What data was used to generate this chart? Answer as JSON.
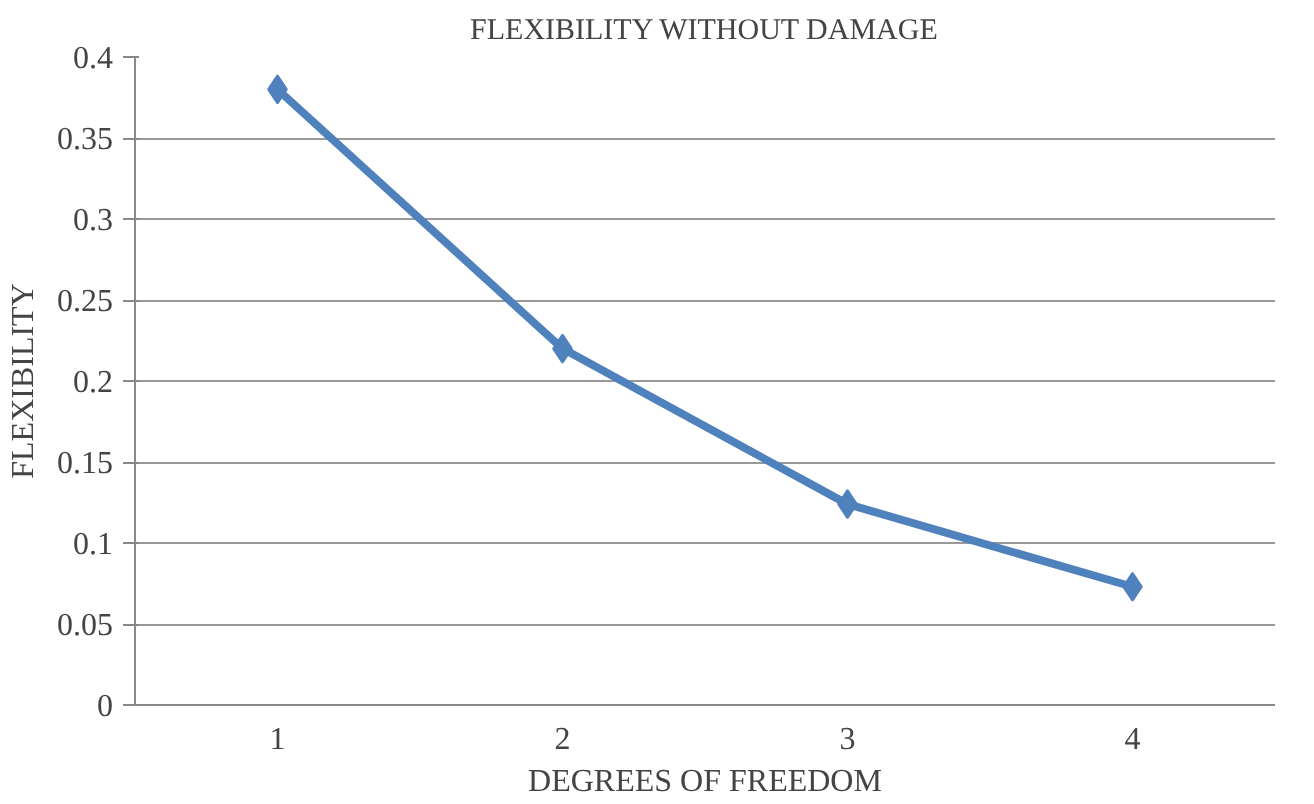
{
  "chart_data": {
    "type": "line",
    "title": "FLEXIBILITY WITHOUT DAMAGE",
    "xlabel": "DEGREES OF FREEDOM",
    "ylabel": "FLEXIBILITY",
    "categories": [
      "1",
      "2",
      "3",
      "4"
    ],
    "series": [
      {
        "color": "#4f81bd",
        "values": [
          0.38,
          0.22,
          0.124,
          0.073
        ]
      }
    ],
    "ylim": [
      0,
      0.4
    ],
    "yticks": [
      0,
      0.05,
      0.1,
      0.15,
      0.2,
      0.25,
      0.3,
      0.35,
      0.4
    ],
    "grid": "y",
    "marker": "diamond",
    "line_style": "solid"
  }
}
